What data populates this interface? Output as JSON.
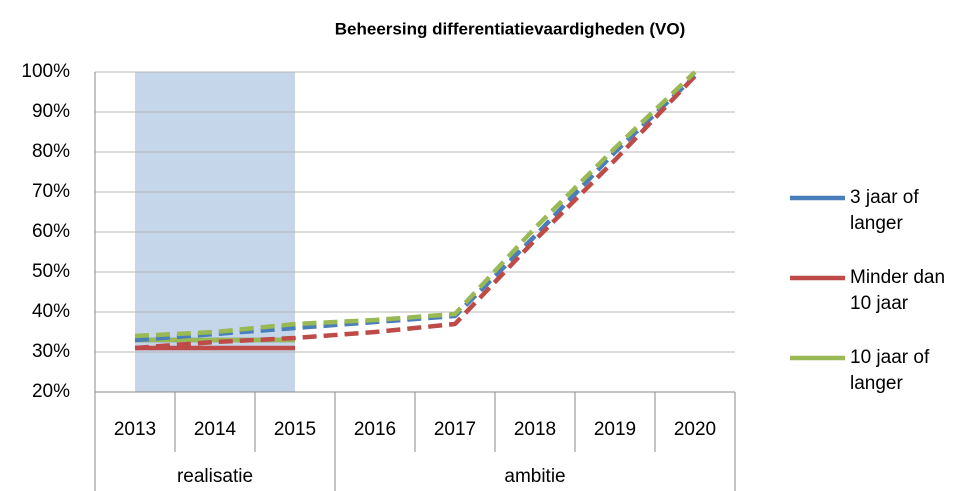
{
  "chart_data": {
    "type": "line",
    "title": "Beheersing differentiatievaardigheden (VO)",
    "categories": [
      "2013",
      "2014",
      "2015",
      "2016",
      "2017",
      "2018",
      "2019",
      "2020"
    ],
    "groups": [
      {
        "label": "realisatie",
        "span": 3
      },
      {
        "label": "ambitie",
        "span": 5
      }
    ],
    "highlight_color": "#c5d5ea",
    "series": [
      {
        "name": "3 jaar of langer",
        "color": "#4a7ebb",
        "realized": [
          33,
          33,
          33
        ],
        "values": [
          33,
          34.5,
          36,
          37.5,
          39,
          59,
          80,
          99
        ]
      },
      {
        "name": "Minder dan 10 jaar",
        "color": "#be4b48",
        "realized": [
          31,
          31,
          31
        ],
        "values": [
          31,
          32.5,
          33.5,
          35,
          37,
          58,
          78,
          99
        ]
      },
      {
        "name": "10 jaar of langer",
        "color": "#98b954",
        "realized": [
          33,
          33,
          33
        ],
        "values": [
          34,
          35,
          37,
          38,
          39.5,
          61,
          81,
          100
        ]
      }
    ],
    "ylim": [
      20,
      100
    ],
    "yticks": [
      {
        "value": 20,
        "label": "20%"
      },
      {
        "value": 30,
        "label": "30%"
      },
      {
        "value": 40,
        "label": "40%"
      },
      {
        "value": 50,
        "label": "50%"
      },
      {
        "value": 60,
        "label": "60%"
      },
      {
        "value": 70,
        "label": "70%"
      },
      {
        "value": 80,
        "label": "80%"
      },
      {
        "value": 90,
        "label": "90%"
      },
      {
        "value": 100,
        "label": "100%"
      }
    ],
    "grid": true
  }
}
